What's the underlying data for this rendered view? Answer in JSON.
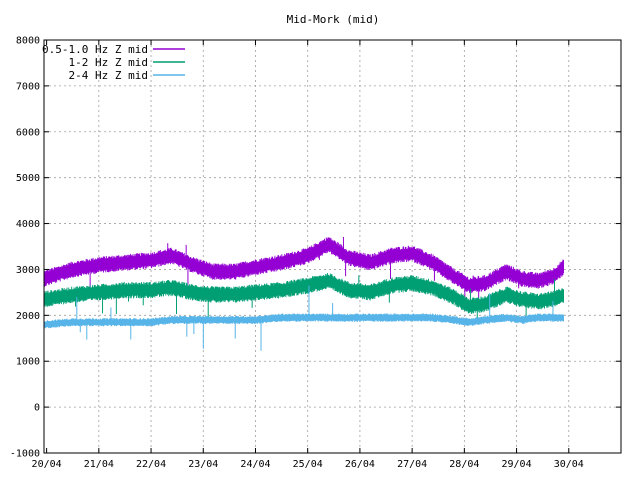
{
  "chart_data": {
    "type": "line",
    "title": "Mid-Mork (mid)",
    "xlabel": "",
    "ylabel": "",
    "ylim": [
      -1000,
      8000
    ],
    "yticks": [
      -1000,
      0,
      1000,
      2000,
      3000,
      4000,
      5000,
      6000,
      7000,
      8000
    ],
    "xticks": [
      "20/04",
      "21/04",
      "22/04",
      "23/04",
      "24/04",
      "25/04",
      "26/04",
      "27/04",
      "28/04",
      "29/04",
      "30/04"
    ],
    "grid": true,
    "legend_position": "top-left",
    "series": [
      {
        "name": "0.5-1.0 Hz Z mid",
        "color": "#9400d3",
        "x": [
          19.95,
          20.5,
          21.0,
          21.5,
          22.0,
          22.4,
          22.8,
          23.2,
          23.6,
          24.0,
          24.5,
          25.0,
          25.4,
          25.8,
          26.2,
          26.6,
          27.0,
          27.4,
          27.8,
          28.1,
          28.4,
          28.8,
          29.1,
          29.4,
          29.7,
          29.9
        ],
        "y": [
          2800,
          3000,
          3100,
          3150,
          3200,
          3300,
          3100,
          2950,
          2950,
          3050,
          3150,
          3300,
          3550,
          3250,
          3150,
          3300,
          3350,
          3150,
          2850,
          2650,
          2700,
          2950,
          2800,
          2750,
          2850,
          3050
        ]
      },
      {
        "name": "1-2 Hz Z mid",
        "color": "#009e73",
        "x": [
          19.95,
          20.5,
          21.0,
          21.5,
          22.0,
          22.4,
          22.8,
          23.2,
          23.6,
          24.0,
          24.5,
          25.0,
          25.4,
          25.8,
          26.2,
          26.6,
          27.0,
          27.4,
          27.8,
          28.1,
          28.4,
          28.8,
          29.1,
          29.4,
          29.7,
          29.9
        ],
        "y": [
          2350,
          2450,
          2500,
          2550,
          2550,
          2600,
          2500,
          2450,
          2450,
          2500,
          2550,
          2650,
          2750,
          2550,
          2500,
          2650,
          2700,
          2600,
          2400,
          2200,
          2250,
          2450,
          2350,
          2300,
          2350,
          2450
        ]
      },
      {
        "name": "2-4 Hz Z mid",
        "color": "#56b4e9",
        "x": [
          19.95,
          20.5,
          21.0,
          21.5,
          22.0,
          22.4,
          22.8,
          23.2,
          23.6,
          24.0,
          24.5,
          25.0,
          25.4,
          25.8,
          26.2,
          26.6,
          27.0,
          27.4,
          27.8,
          28.1,
          28.4,
          28.8,
          29.1,
          29.4,
          29.7,
          29.9
        ],
        "y": [
          1800,
          1850,
          1850,
          1850,
          1850,
          1900,
          1900,
          1900,
          1900,
          1900,
          1950,
          1950,
          1950,
          1950,
          1950,
          1950,
          1950,
          1950,
          1900,
          1850,
          1900,
          1950,
          1900,
          1950,
          1950,
          1950
        ]
      }
    ]
  }
}
